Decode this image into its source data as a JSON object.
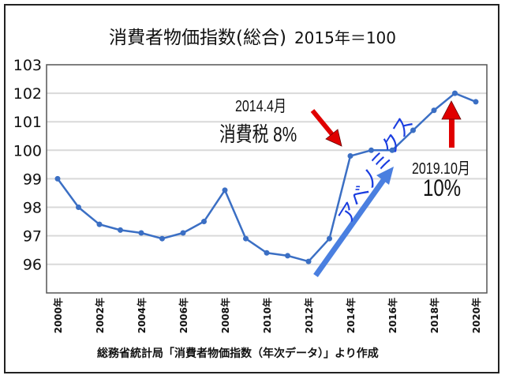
{
  "chart_data": {
    "type": "line",
    "title": "消費者物価指数(総合)",
    "subtitle": "2015年＝100",
    "x": [
      2000,
      2001,
      2002,
      2003,
      2004,
      2005,
      2006,
      2007,
      2008,
      2009,
      2010,
      2011,
      2012,
      2013,
      2014,
      2015,
      2016,
      2017,
      2018,
      2019,
      2020
    ],
    "x_tick_labels": [
      "2000年",
      "2002年",
      "2004年",
      "2006年",
      "2008年",
      "2010年",
      "2012年",
      "2014年",
      "2016年",
      "2018年",
      "2020年"
    ],
    "series": [
      {
        "name": "消費者物価指数",
        "values": [
          99.0,
          98.0,
          97.4,
          97.2,
          97.1,
          96.9,
          97.1,
          97.5,
          98.6,
          96.9,
          96.4,
          96.3,
          96.1,
          96.9,
          99.8,
          100.0,
          100.0,
          100.7,
          101.4,
          102.0,
          101.7
        ]
      }
    ],
    "y_ticks": [
      96,
      97,
      98,
      99,
      100,
      101,
      102,
      103
    ],
    "ylim": [
      95,
      103
    ],
    "grid": true,
    "line_color": "#3b6fc4",
    "annotations": {
      "tax8_date": "2014.4月",
      "tax8_label": "消費税 8%",
      "tax10_date": "2019.10月",
      "tax10_label": "10%",
      "abenomics": "アベノミクス",
      "arrow_red": "#e00000",
      "arrow_blue": "#4a7fe0"
    },
    "source": "総務省統計局「消費者物価指数（年次データ）」より作成"
  }
}
